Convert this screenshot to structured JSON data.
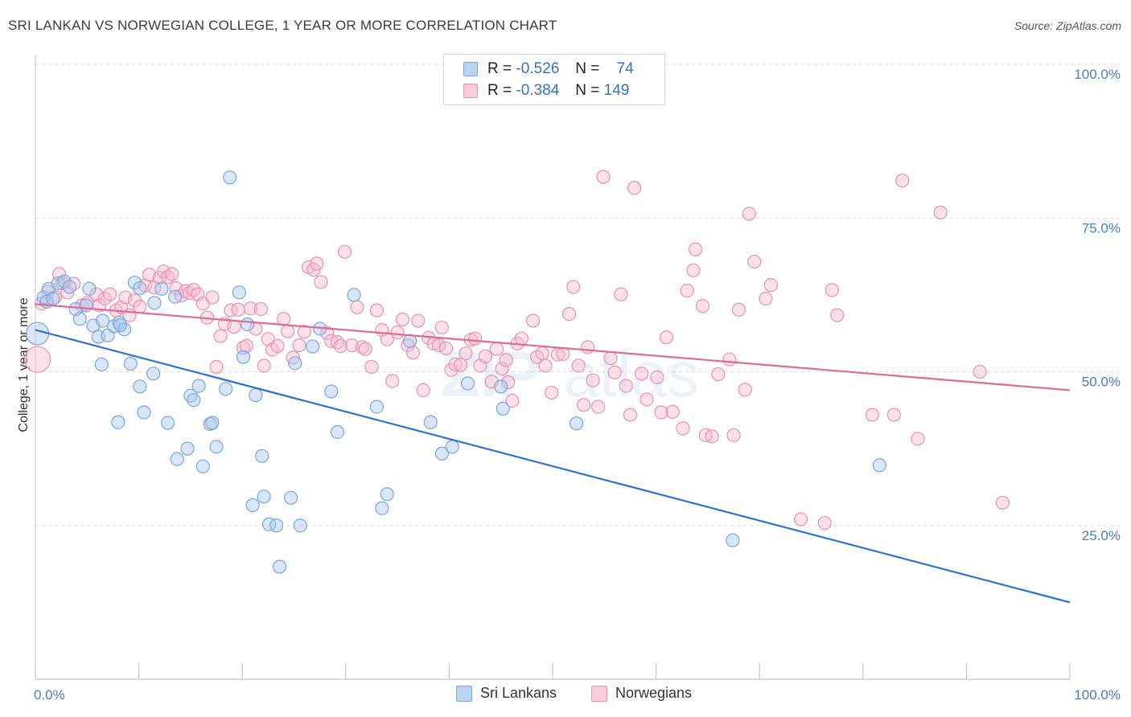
{
  "title": "SRI LANKAN VS NORWEGIAN COLLEGE, 1 YEAR OR MORE CORRELATION CHART",
  "source": "Source: ZipAtlas.com",
  "colors": {
    "blue_fill": "#a9c8ee",
    "blue_stroke": "#7aa6dc",
    "blue_line": "#2f72d0",
    "pink_fill": "#f6bcd0",
    "pink_stroke": "#ec8fb0",
    "pink_line": "#e06a94",
    "grid": "#dddddd",
    "tick_text": "#4a7cc7"
  },
  "legend_top": {
    "rows": [
      {
        "r_label": "R =",
        "r_value": "-0.526",
        "n_label": "N =",
        "n_value": "74"
      },
      {
        "r_label": "R =",
        "r_value": "-0.384",
        "n_label": "N =",
        "n_value": "149"
      }
    ]
  },
  "legend_bottom": [
    "Sri Lankans",
    "Norwegians"
  ],
  "chart_data": {
    "type": "scatter",
    "title": "SRI LANKAN VS NORWEGIAN COLLEGE, 1 YEAR OR MORE CORRELATION CHART",
    "xlabel": "",
    "ylabel": "College, 1 year or more",
    "xlim": [
      0,
      100
    ],
    "ylim": [
      0,
      100
    ],
    "x_tick_labels": [
      "0.0%",
      "100.0%"
    ],
    "y_tick_labels": [
      "25.0%",
      "50.0%",
      "75.0%",
      "100.0%"
    ],
    "y_ticks": [
      25,
      50,
      75,
      100
    ],
    "grid": true,
    "legend_placement": "top-center",
    "series": [
      {
        "name": "Sri Lankans",
        "R": -0.526,
        "N": 74,
        "trend": [
          [
            0,
            56.8
          ],
          [
            100,
            12.5
          ]
        ],
        "points": [
          [
            0.2,
            56.2
          ],
          [
            0.8,
            62.1
          ],
          [
            1.1,
            61.4
          ],
          [
            1.3,
            63.5
          ],
          [
            2.2,
            64.4
          ],
          [
            2.8,
            64.7
          ],
          [
            3.3,
            63.8
          ],
          [
            3.9,
            60.2
          ],
          [
            4.3,
            58.6
          ],
          [
            4.9,
            60.8
          ],
          [
            5.2,
            63.5
          ],
          [
            5.6,
            57.5
          ],
          [
            6.1,
            55.7
          ],
          [
            6.5,
            58.3
          ],
          [
            7.0,
            55.9
          ],
          [
            7.6,
            57.4
          ],
          [
            8.1,
            58.0
          ],
          [
            8.6,
            56.9
          ],
          [
            8.2,
            57.6
          ],
          [
            9.6,
            64.5
          ],
          [
            10.1,
            63.6
          ],
          [
            11.5,
            61.2
          ],
          [
            12.2,
            63.5
          ],
          [
            13.5,
            62.2
          ],
          [
            6.4,
            51.2
          ],
          [
            9.2,
            51.3
          ],
          [
            11.4,
            49.7
          ],
          [
            10.1,
            47.6
          ],
          [
            10.5,
            43.4
          ],
          [
            8.0,
            41.8
          ],
          [
            12.8,
            41.7
          ],
          [
            13.7,
            35.8
          ],
          [
            14.7,
            37.5
          ],
          [
            15.0,
            46.1
          ],
          [
            15.3,
            45.4
          ],
          [
            15.8,
            47.7
          ],
          [
            16.2,
            34.6
          ],
          [
            16.9,
            41.5
          ],
          [
            17.1,
            41.7
          ],
          [
            17.5,
            37.8
          ],
          [
            18.4,
            47.2
          ],
          [
            18.8,
            81.6
          ],
          [
            19.7,
            62.9
          ],
          [
            20.1,
            52.4
          ],
          [
            20.5,
            57.7
          ],
          [
            21.3,
            46.2
          ],
          [
            21.9,
            36.3
          ],
          [
            22.1,
            29.7
          ],
          [
            21.0,
            28.3
          ],
          [
            22.6,
            25.2
          ],
          [
            23.3,
            25.0
          ],
          [
            23.6,
            18.3
          ],
          [
            24.7,
            29.5
          ],
          [
            25.1,
            51.4
          ],
          [
            25.6,
            25.0
          ],
          [
            26.8,
            54.1
          ],
          [
            27.5,
            57.0
          ],
          [
            28.6,
            46.8
          ],
          [
            29.2,
            40.2
          ],
          [
            30.8,
            62.5
          ],
          [
            33.0,
            44.3
          ],
          [
            33.5,
            27.8
          ],
          [
            34.0,
            30.1
          ],
          [
            36.2,
            55.0
          ],
          [
            38.2,
            41.8
          ],
          [
            39.3,
            36.7
          ],
          [
            40.3,
            37.8
          ],
          [
            41.8,
            48.1
          ],
          [
            45.0,
            47.6
          ],
          [
            45.2,
            44.0
          ],
          [
            52.3,
            41.6
          ],
          [
            81.6,
            34.8
          ],
          [
            67.4,
            22.6
          ],
          [
            1.7,
            61.9
          ]
        ]
      },
      {
        "name": "Norwegians",
        "R": -0.384,
        "N": 149,
        "trend": [
          [
            0,
            61.0
          ],
          [
            100,
            47.0
          ]
        ],
        "points": [
          [
            0.2,
            52.0
          ],
          [
            0.6,
            61.1
          ],
          [
            1.2,
            63.0
          ],
          [
            1.9,
            62.1
          ],
          [
            2.3,
            65.9
          ],
          [
            2.6,
            64.4
          ],
          [
            3.1,
            62.9
          ],
          [
            3.7,
            64.3
          ],
          [
            4.5,
            60.8
          ],
          [
            5.0,
            61.2
          ],
          [
            5.9,
            62.6
          ],
          [
            6.2,
            60.8
          ],
          [
            6.7,
            61.9
          ],
          [
            7.2,
            62.6
          ],
          [
            7.8,
            60.0
          ],
          [
            8.3,
            60.5
          ],
          [
            8.7,
            62.1
          ],
          [
            9.1,
            59.2
          ],
          [
            9.6,
            61.6
          ],
          [
            10.1,
            60.6
          ],
          [
            10.6,
            64.0
          ],
          [
            11.0,
            65.8
          ],
          [
            11.5,
            63.7
          ],
          [
            12.0,
            65.3
          ],
          [
            12.4,
            66.3
          ],
          [
            12.8,
            65.4
          ],
          [
            13.2,
            65.9
          ],
          [
            13.6,
            63.6
          ],
          [
            14.1,
            62.4
          ],
          [
            14.5,
            63.1
          ],
          [
            14.9,
            62.8
          ],
          [
            15.3,
            63.3
          ],
          [
            15.7,
            62.6
          ],
          [
            16.2,
            61.1
          ],
          [
            16.6,
            58.8
          ],
          [
            17.1,
            62.1
          ],
          [
            17.5,
            50.8
          ],
          [
            17.9,
            55.8
          ],
          [
            18.3,
            57.8
          ],
          [
            18.9,
            60.0
          ],
          [
            19.2,
            57.3
          ],
          [
            19.6,
            60.1
          ],
          [
            20.1,
            53.9
          ],
          [
            20.4,
            54.2
          ],
          [
            20.8,
            60.3
          ],
          [
            21.3,
            57.0
          ],
          [
            21.8,
            60.2
          ],
          [
            22.1,
            51.0
          ],
          [
            22.5,
            55.3
          ],
          [
            22.9,
            53.6
          ],
          [
            23.4,
            54.2
          ],
          [
            24.0,
            58.6
          ],
          [
            24.4,
            56.6
          ],
          [
            24.9,
            52.3
          ],
          [
            25.5,
            54.3
          ],
          [
            26.0,
            56.5
          ],
          [
            26.4,
            67.0
          ],
          [
            26.9,
            66.6
          ],
          [
            27.2,
            67.6
          ],
          [
            27.6,
            64.6
          ],
          [
            28.2,
            56.3
          ],
          [
            28.6,
            55.0
          ],
          [
            29.2,
            54.8
          ],
          [
            29.5,
            54.2
          ],
          [
            29.9,
            69.5
          ],
          [
            30.6,
            54.3
          ],
          [
            31.1,
            60.5
          ],
          [
            31.6,
            54.0
          ],
          [
            31.9,
            53.7
          ],
          [
            32.5,
            50.8
          ],
          [
            33.0,
            60.0
          ],
          [
            33.5,
            56.8
          ],
          [
            34.0,
            55.3
          ],
          [
            34.5,
            48.5
          ],
          [
            35.0,
            56.4
          ],
          [
            35.5,
            58.5
          ],
          [
            36.0,
            54.3
          ],
          [
            36.5,
            53.1
          ],
          [
            37.0,
            58.3
          ],
          [
            37.5,
            47.0
          ],
          [
            38.0,
            55.5
          ],
          [
            38.5,
            54.6
          ],
          [
            39.0,
            54.3
          ],
          [
            39.3,
            57.2
          ],
          [
            39.7,
            53.8
          ],
          [
            40.2,
            50.3
          ],
          [
            40.6,
            51.2
          ],
          [
            41.1,
            51.1
          ],
          [
            41.6,
            53.0
          ],
          [
            42.1,
            55.2
          ],
          [
            42.5,
            55.4
          ],
          [
            43.0,
            51.0
          ],
          [
            43.5,
            52.5
          ],
          [
            44.1,
            48.4
          ],
          [
            44.6,
            53.7
          ],
          [
            45.1,
            50.5
          ],
          [
            45.5,
            51.9
          ],
          [
            45.7,
            48.3
          ],
          [
            46.1,
            45.3
          ],
          [
            46.6,
            54.6
          ],
          [
            47.0,
            55.4
          ],
          [
            48.1,
            58.3
          ],
          [
            48.5,
            52.4
          ],
          [
            49.0,
            53.0
          ],
          [
            49.3,
            51.0
          ],
          [
            49.9,
            46.6
          ],
          [
            50.5,
            52.8
          ],
          [
            51.0,
            52.9
          ],
          [
            51.6,
            59.4
          ],
          [
            52.0,
            63.8
          ],
          [
            52.5,
            51.0
          ],
          [
            53.0,
            44.6
          ],
          [
            53.4,
            54.0
          ],
          [
            53.9,
            48.6
          ],
          [
            54.4,
            44.3
          ],
          [
            54.9,
            81.7
          ],
          [
            55.6,
            52.2
          ],
          [
            56.0,
            49.9
          ],
          [
            56.6,
            62.6
          ],
          [
            57.1,
            47.7
          ],
          [
            57.5,
            43.0
          ],
          [
            57.9,
            79.9
          ],
          [
            58.6,
            49.7
          ],
          [
            59.1,
            45.5
          ],
          [
            60.1,
            49.1
          ],
          [
            60.5,
            43.4
          ],
          [
            61.0,
            55.6
          ],
          [
            61.6,
            43.5
          ],
          [
            62.6,
            40.8
          ],
          [
            63.0,
            63.2
          ],
          [
            63.6,
            66.5
          ],
          [
            63.8,
            69.9
          ],
          [
            64.5,
            60.7
          ],
          [
            64.8,
            39.7
          ],
          [
            65.4,
            39.5
          ],
          [
            66.0,
            49.6
          ],
          [
            67.1,
            52.0
          ],
          [
            67.5,
            39.7
          ],
          [
            68.0,
            60.1
          ],
          [
            68.6,
            47.1
          ],
          [
            69.0,
            75.7
          ],
          [
            69.5,
            67.9
          ],
          [
            70.6,
            61.9
          ],
          [
            71.1,
            64.1
          ],
          [
            74.0,
            26.0
          ],
          [
            76.3,
            25.4
          ],
          [
            77.0,
            63.3
          ],
          [
            77.5,
            59.2
          ],
          [
            80.9,
            43.0
          ],
          [
            83.0,
            43.0
          ],
          [
            83.8,
            81.1
          ],
          [
            85.3,
            39.1
          ],
          [
            87.5,
            75.9
          ],
          [
            91.3,
            50.0
          ],
          [
            93.5,
            28.7
          ]
        ]
      }
    ]
  }
}
